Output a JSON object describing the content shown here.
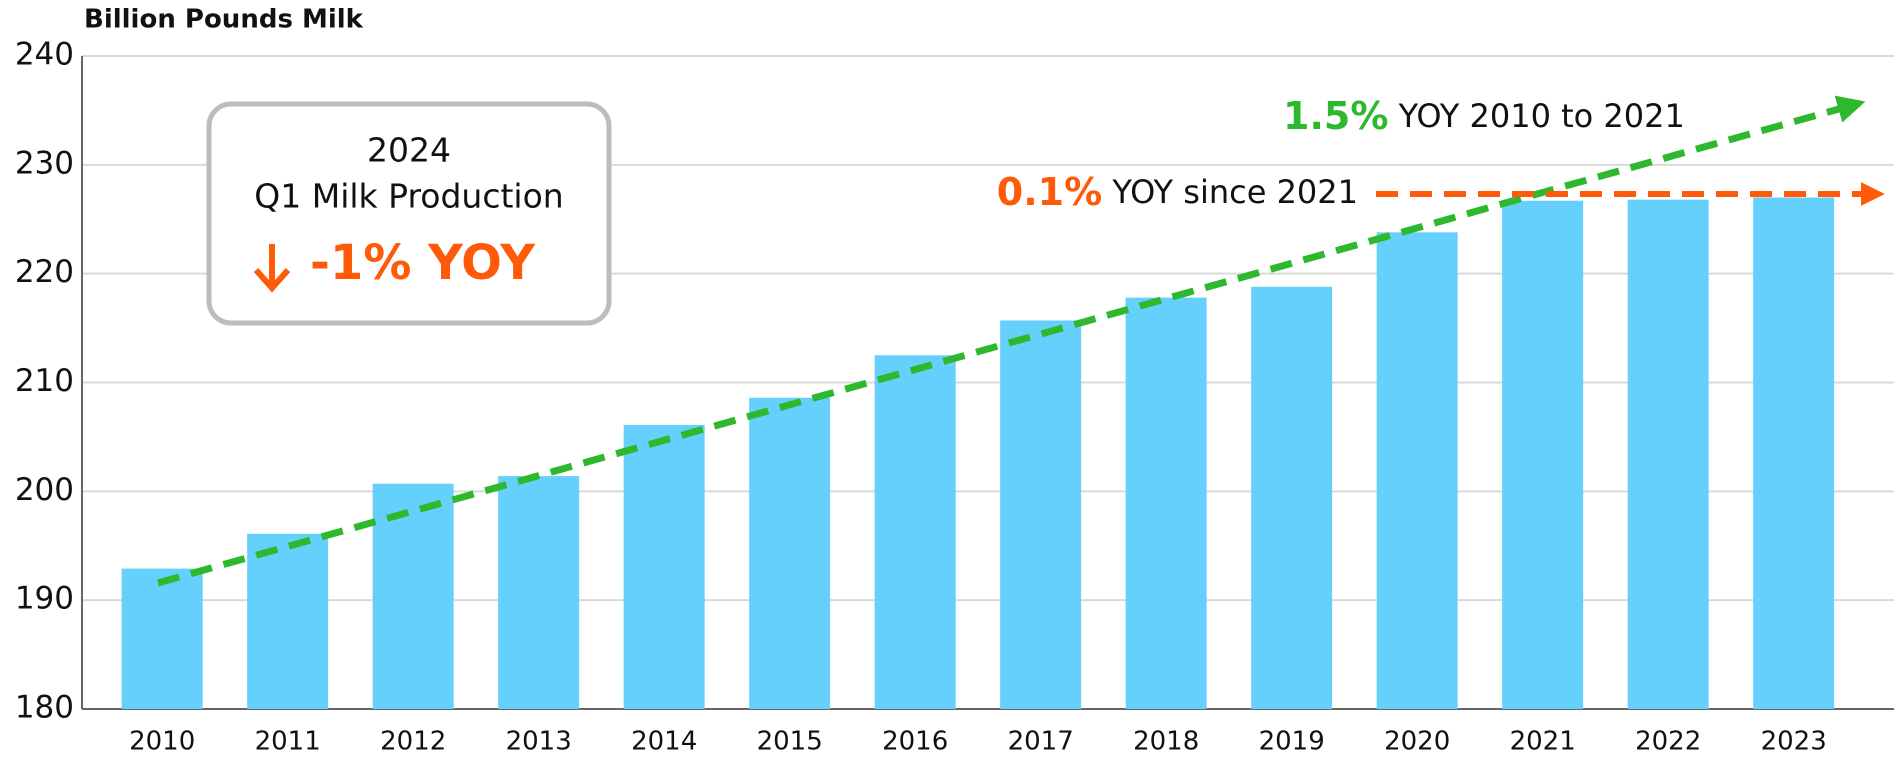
{
  "chart_data": {
    "type": "bar",
    "y_label": "Billion Pounds Milk",
    "categories": [
      "2010",
      "2011",
      "2012",
      "2013",
      "2014",
      "2015",
      "2016",
      "2017",
      "2018",
      "2019",
      "2020",
      "2021",
      "2022",
      "2023"
    ],
    "values": [
      192.9,
      196.1,
      200.7,
      201.4,
      206.1,
      208.6,
      212.5,
      215.7,
      217.8,
      218.8,
      223.8,
      226.7,
      226.8,
      227.0
    ],
    "color": "#66d0fc",
    "ylim": [
      180,
      240
    ],
    "yticks": [
      180,
      190,
      200,
      210,
      220,
      230,
      240
    ],
    "grid": true,
    "annotations": {
      "trend_long": {
        "rate": "1.5%",
        "text": "YOY 2010 to 2021",
        "color": "#2eb82e"
      },
      "trend_recent": {
        "rate": "0.1%",
        "text": "YOY since 2021",
        "color": "#ff5a0a"
      },
      "box": {
        "year": "2024",
        "subtitle": "Q1 Milk Production",
        "change": "-1% YOY"
      }
    }
  }
}
